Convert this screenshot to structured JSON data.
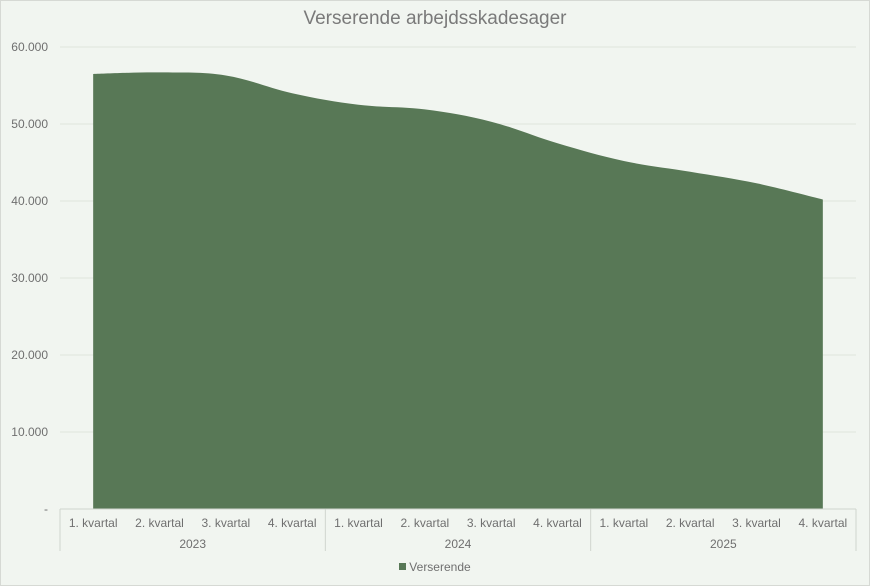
{
  "chart_data": {
    "type": "area",
    "title": "Verserende arbejdsskadesager",
    "xlabel": "",
    "ylabel": "",
    "ylim": [
      0,
      60000
    ],
    "yticks": [
      "-",
      "10.000",
      "20.000",
      "30.000",
      "40.000",
      "50.000",
      "60.000"
    ],
    "grid": true,
    "legend_position": "bottom",
    "color": "#587856",
    "categories": [
      "1. kvartal",
      "2. kvartal",
      "3. kvartal",
      "4. kvartal",
      "1. kvartal",
      "2. kvartal",
      "3. kvartal",
      "4. kvartal",
      "1. kvartal",
      "2. kvartal",
      "3. kvartal",
      "4. kvartal"
    ],
    "groups": [
      {
        "label": "2023",
        "count": 4
      },
      {
        "label": "2024",
        "count": 4
      },
      {
        "label": "2025",
        "count": 4
      }
    ],
    "series": [
      {
        "name": "Verserende",
        "values": [
          56500,
          56700,
          56300,
          54000,
          52500,
          51900,
          50300,
          47500,
          45200,
          43800,
          42300,
          40200
        ]
      }
    ]
  }
}
